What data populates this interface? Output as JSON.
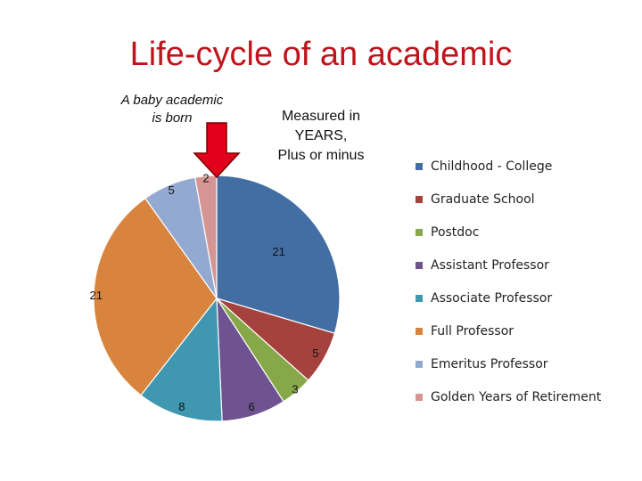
{
  "title": "Life-cycle of an academic",
  "annotations": {
    "baby": [
      "A baby academic",
      "is born"
    ],
    "measured": [
      "Measured in",
      "YEARS,",
      "Plus or minus"
    ]
  },
  "colors": {
    "title": "#c0141c",
    "arrow": "#e3001b"
  },
  "icons": {
    "pointer": "down-arrow-icon"
  },
  "chart_data": {
    "type": "pie",
    "title": "Life-cycle of an academic",
    "start_angle_deg": 0,
    "direction": "clockwise",
    "legend_position": "right",
    "categories": [
      "Childhood - College",
      "Graduate School",
      "Postdoc",
      "Assistant Professor",
      "Associate Professor",
      "Full Professor",
      "Emeritus Professor",
      "Golden Years of Retirement"
    ],
    "values": [
      21,
      5,
      3,
      6,
      8,
      21,
      5,
      2
    ],
    "labels": [
      "21",
      "5",
      "3",
      "6",
      "8",
      "21",
      "5",
      "2"
    ],
    "colors": [
      "#426ea3",
      "#a6423e",
      "#86a848",
      "#6e5390",
      "#3f97b0",
      "#d8843e",
      "#93a9d2",
      "#d59593"
    ]
  }
}
